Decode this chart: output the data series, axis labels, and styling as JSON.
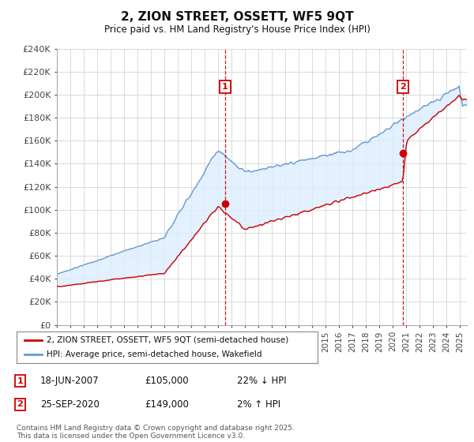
{
  "title": "2, ZION STREET, OSSETT, WF5 9QT",
  "subtitle": "Price paid vs. HM Land Registry's House Price Index (HPI)",
  "legend_line1": "2, ZION STREET, OSSETT, WF5 9QT (semi-detached house)",
  "legend_line2": "HPI: Average price, semi-detached house, Wakefield",
  "footer": "Contains HM Land Registry data © Crown copyright and database right 2025.\nThis data is licensed under the Open Government Licence v3.0.",
  "annotation1_label": "1",
  "annotation1_date": "18-JUN-2007",
  "annotation1_price": "£105,000",
  "annotation1_hpi": "22% ↓ HPI",
  "annotation2_label": "2",
  "annotation2_date": "25-SEP-2020",
  "annotation2_price": "£149,000",
  "annotation2_hpi": "2% ↑ HPI",
  "dashed_line1_x": 2007.5,
  "dashed_line2_x": 2020.75,
  "point1_x": 2007.5,
  "point1_y": 105000,
  "point2_x": 2020.75,
  "point2_y": 149000,
  "ylim": [
    0,
    240000
  ],
  "ytick_values": [
    0,
    20000,
    40000,
    60000,
    80000,
    100000,
    120000,
    140000,
    160000,
    180000,
    200000,
    220000,
    240000
  ],
  "xmin": 1995,
  "xmax": 2025.5,
  "red_color": "#cc0000",
  "blue_color": "#6699cc",
  "fill_color": "#ddeeff",
  "background_color": "#ffffff",
  "grid_color": "#cccccc"
}
